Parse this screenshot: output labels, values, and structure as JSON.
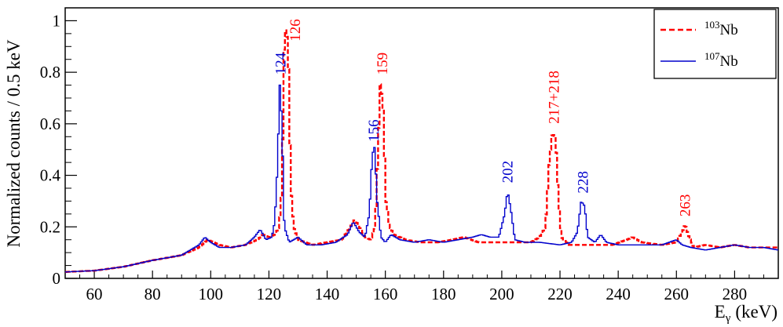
{
  "chart_data": {
    "type": "line",
    "xlabel": "E",
    "xlabel_sub": "γ",
    "xlabel_unit": "(keV)",
    "ylabel": "Normalized counts / 0.5 keV",
    "xlim": [
      50,
      295
    ],
    "ylim": [
      0,
      1.05
    ],
    "x_ticks": [
      60,
      80,
      100,
      120,
      140,
      160,
      180,
      200,
      220,
      240,
      260,
      280
    ],
    "y_ticks": [
      0,
      0.2,
      0.4,
      0.6,
      0.8,
      1
    ],
    "y_tick_labels": [
      "0",
      "0.2",
      "0.4",
      "0.6",
      "0.8",
      "1"
    ],
    "grid": false,
    "legend_position": "top-right",
    "series": [
      {
        "name": "Nb",
        "name_superscript": "103",
        "color": "#ff0000",
        "style": "dashed",
        "points": [
          [
            50,
            0.025
          ],
          [
            60,
            0.03
          ],
          [
            70,
            0.045
          ],
          [
            80,
            0.07
          ],
          [
            90,
            0.09
          ],
          [
            96,
            0.12
          ],
          [
            99,
            0.15
          ],
          [
            103,
            0.13
          ],
          [
            107,
            0.12
          ],
          [
            112,
            0.13
          ],
          [
            116,
            0.15
          ],
          [
            118,
            0.17
          ],
          [
            120,
            0.16
          ],
          [
            122,
            0.17
          ],
          [
            123.5,
            0.2
          ],
          [
            124.5,
            0.35
          ],
          [
            125.2,
            0.88
          ],
          [
            126,
            1.0
          ],
          [
            126.8,
            0.8
          ],
          [
            127.5,
            0.36
          ],
          [
            128.5,
            0.2
          ],
          [
            130,
            0.15
          ],
          [
            135,
            0.13
          ],
          [
            140,
            0.14
          ],
          [
            145,
            0.15
          ],
          [
            148,
            0.2
          ],
          [
            149.5,
            0.23
          ],
          [
            151,
            0.2
          ],
          [
            153,
            0.16
          ],
          [
            155,
            0.15
          ],
          [
            156.5,
            0.2
          ],
          [
            157.5,
            0.5
          ],
          [
            158.3,
            0.77
          ],
          [
            159.3,
            0.65
          ],
          [
            160.2,
            0.3
          ],
          [
            161.5,
            0.2
          ],
          [
            163,
            0.17
          ],
          [
            167,
            0.15
          ],
          [
            172,
            0.14
          ],
          [
            178,
            0.14
          ],
          [
            183,
            0.15
          ],
          [
            187,
            0.16
          ],
          [
            192,
            0.14
          ],
          [
            200,
            0.14
          ],
          [
            205,
            0.14
          ],
          [
            210,
            0.14
          ],
          [
            213,
            0.16
          ],
          [
            215,
            0.2
          ],
          [
            216.3,
            0.45
          ],
          [
            217.3,
            0.56
          ],
          [
            218.5,
            0.55
          ],
          [
            219.5,
            0.3
          ],
          [
            220.5,
            0.16
          ],
          [
            223,
            0.13
          ],
          [
            230,
            0.13
          ],
          [
            238,
            0.13
          ],
          [
            243,
            0.15
          ],
          [
            245,
            0.16
          ],
          [
            248,
            0.14
          ],
          [
            255,
            0.13
          ],
          [
            260,
            0.14
          ],
          [
            262,
            0.18
          ],
          [
            263,
            0.21
          ],
          [
            264,
            0.17
          ],
          [
            266,
            0.12
          ],
          [
            270,
            0.13
          ],
          [
            275,
            0.12
          ],
          [
            280,
            0.13
          ],
          [
            285,
            0.12
          ],
          [
            290,
            0.12
          ],
          [
            295,
            0.12
          ]
        ]
      },
      {
        "name": "Nb",
        "name_superscript": "107",
        "color": "#0000cc",
        "style": "solid",
        "points": [
          [
            50,
            0.025
          ],
          [
            60,
            0.03
          ],
          [
            70,
            0.045
          ],
          [
            80,
            0.07
          ],
          [
            90,
            0.09
          ],
          [
            96,
            0.13
          ],
          [
            98,
            0.16
          ],
          [
            100,
            0.14
          ],
          [
            103,
            0.12
          ],
          [
            107,
            0.12
          ],
          [
            112,
            0.13
          ],
          [
            115,
            0.16
          ],
          [
            117,
            0.19
          ],
          [
            119,
            0.15
          ],
          [
            121,
            0.16
          ],
          [
            122,
            0.22
          ],
          [
            123,
            0.45
          ],
          [
            123.7,
            0.76
          ],
          [
            124.5,
            0.6
          ],
          [
            125.3,
            0.2
          ],
          [
            127,
            0.14
          ],
          [
            130,
            0.16
          ],
          [
            133,
            0.13
          ],
          [
            138,
            0.13
          ],
          [
            143,
            0.14
          ],
          [
            147,
            0.17
          ],
          [
            149,
            0.22
          ],
          [
            151,
            0.18
          ],
          [
            153,
            0.16
          ],
          [
            154.5,
            0.25
          ],
          [
            155.5,
            0.48
          ],
          [
            156.3,
            0.51
          ],
          [
            157.2,
            0.3
          ],
          [
            158.5,
            0.16
          ],
          [
            160,
            0.14
          ],
          [
            162,
            0.17
          ],
          [
            165,
            0.15
          ],
          [
            170,
            0.14
          ],
          [
            175,
            0.15
          ],
          [
            180,
            0.14
          ],
          [
            185,
            0.15
          ],
          [
            190,
            0.16
          ],
          [
            193,
            0.17
          ],
          [
            196,
            0.16
          ],
          [
            199,
            0.16
          ],
          [
            201,
            0.25
          ],
          [
            202,
            0.34
          ],
          [
            203.2,
            0.26
          ],
          [
            204.5,
            0.15
          ],
          [
            208,
            0.14
          ],
          [
            213,
            0.14
          ],
          [
            220,
            0.13
          ],
          [
            224,
            0.14
          ],
          [
            226,
            0.18
          ],
          [
            227.3,
            0.3
          ],
          [
            228.5,
            0.28
          ],
          [
            229.5,
            0.16
          ],
          [
            232,
            0.14
          ],
          [
            234,
            0.17
          ],
          [
            236,
            0.14
          ],
          [
            240,
            0.13
          ],
          [
            245,
            0.13
          ],
          [
            250,
            0.13
          ],
          [
            255,
            0.13
          ],
          [
            260,
            0.15
          ],
          [
            262,
            0.13
          ],
          [
            265,
            0.12
          ],
          [
            270,
            0.11
          ],
          [
            275,
            0.12
          ],
          [
            280,
            0.13
          ],
          [
            285,
            0.12
          ],
          [
            290,
            0.12
          ],
          [
            295,
            0.11
          ]
        ]
      }
    ],
    "annotations": [
      {
        "text": "124",
        "x": 124,
        "y": 0.79,
        "color": "#0000cc"
      },
      {
        "text": "126",
        "x": 129,
        "y": 0.92,
        "color": "#ff0000"
      },
      {
        "text": "156",
        "x": 156,
        "y": 0.53,
        "color": "#0000cc"
      },
      {
        "text": "159",
        "x": 159,
        "y": 0.79,
        "color": "#ff0000"
      },
      {
        "text": "202",
        "x": 202,
        "y": 0.37,
        "color": "#0000cc"
      },
      {
        "text": "217+218",
        "x": 218,
        "y": 0.6,
        "color": "#ff0000"
      },
      {
        "text": "228",
        "x": 228,
        "y": 0.33,
        "color": "#0000cc"
      },
      {
        "text": "263",
        "x": 263,
        "y": 0.24,
        "color": "#ff0000"
      }
    ]
  }
}
